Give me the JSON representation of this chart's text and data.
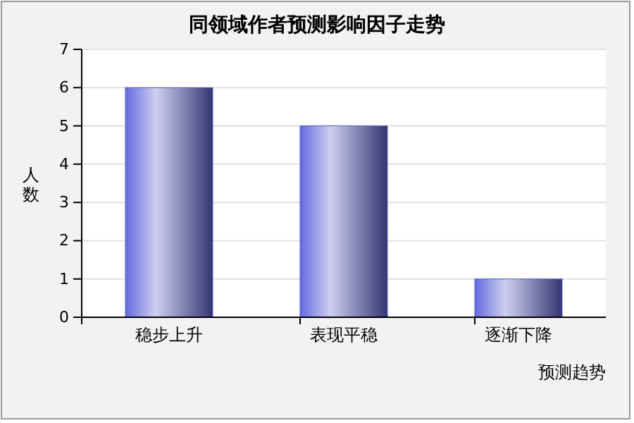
{
  "chart_data": {
    "type": "bar",
    "title": "同领域作者预测影响因子走势",
    "xlabel": "预测趋势",
    "ylabel": "人数",
    "categories": [
      "稳步上升",
      "表现平稳",
      "逐渐下降"
    ],
    "values": [
      6,
      5,
      1
    ],
    "color": "#5a5ec8",
    "ylim": [
      0,
      7
    ],
    "yticks": [
      0,
      1,
      2,
      3,
      4,
      5,
      6,
      7
    ],
    "grid": "y"
  }
}
